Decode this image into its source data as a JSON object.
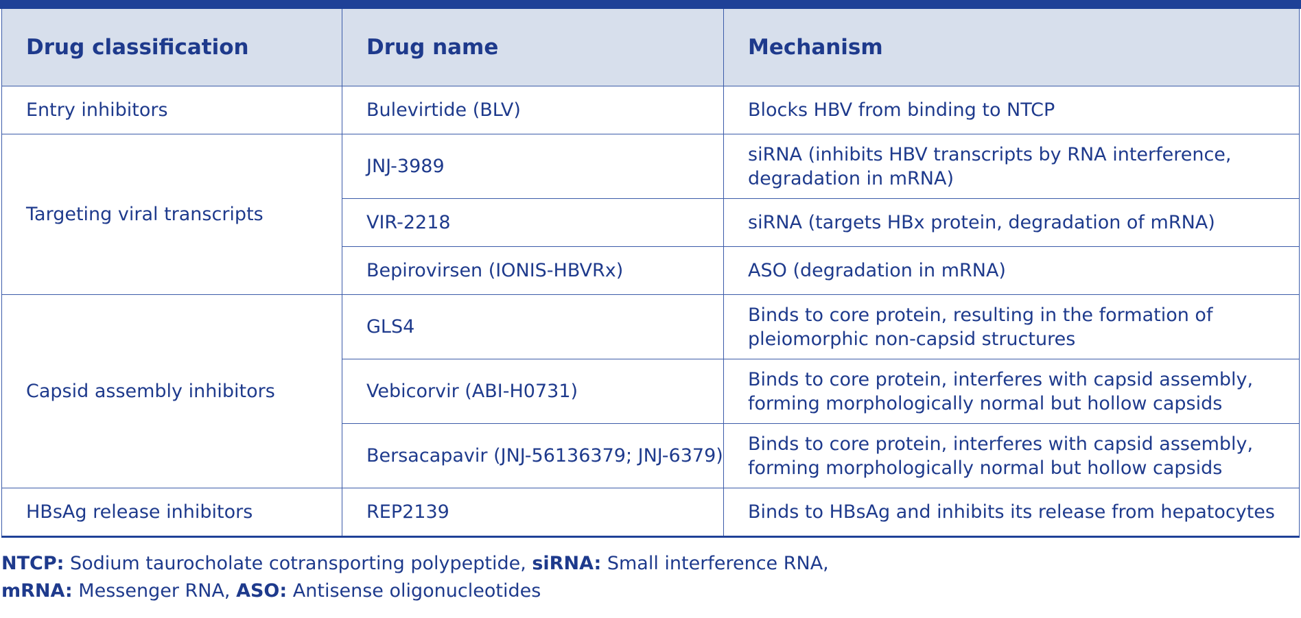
{
  "table": {
    "headers": [
      "Drug classification",
      "Drug name",
      "Mechanism"
    ],
    "groups": [
      {
        "classification": "Entry inhibitors",
        "rows": [
          {
            "drug": "Bulevirtide (BLV)",
            "mechanism": "Blocks HBV from binding to NTCP"
          }
        ]
      },
      {
        "classification": "Targeting viral transcripts",
        "rows": [
          {
            "drug": "JNJ-3989",
            "mechanism": "siRNA (inhibits HBV transcripts by RNA interference, degradation in mRNA)"
          },
          {
            "drug": "VIR-2218",
            "mechanism": "siRNA (targets HBx protein, degradation of mRNA)"
          },
          {
            "drug": "Bepirovirsen (IONIS-HBVRx)",
            "mechanism": "ASO (degradation in mRNA)"
          }
        ]
      },
      {
        "classification": "Capsid assembly inhibitors",
        "rows": [
          {
            "drug": "GLS4",
            "mechanism": "Binds to core protein, resulting in the formation of pleiomorphic non-capsid structures"
          },
          {
            "drug": "Vebicorvir (ABI-H0731)",
            "mechanism": "Binds to core protein, interferes with capsid assembly, forming morphologically normal but hollow capsids"
          },
          {
            "drug": "Bersacapavir (JNJ-56136379; JNJ-6379)",
            "mechanism": "Binds to core protein, interferes with capsid assembly, forming morphologically normal but hollow capsids"
          }
        ]
      },
      {
        "classification": "HBsAg release inhibitors",
        "rows": [
          {
            "drug": "REP2139",
            "mechanism": "Binds to HBsAg and inhibits its release from hepatocytes"
          }
        ]
      }
    ]
  },
  "notes": {
    "ntcp_term": "NTCP:",
    "ntcp_def": " Sodium taurocholate cotransporting polypeptide, ",
    "sirna_term": "siRNA:",
    "sirna_def": " Small interference RNA,",
    "mrna_term": "mRNA:",
    "mrna_def": " Messenger RNA, ",
    "aso_term": "ASO:",
    "aso_def": " Antisense oligonucleotides"
  },
  "colors": {
    "accent": "#1f4197",
    "header_bg": "#d7dfec",
    "text": "#1e3a8c"
  }
}
